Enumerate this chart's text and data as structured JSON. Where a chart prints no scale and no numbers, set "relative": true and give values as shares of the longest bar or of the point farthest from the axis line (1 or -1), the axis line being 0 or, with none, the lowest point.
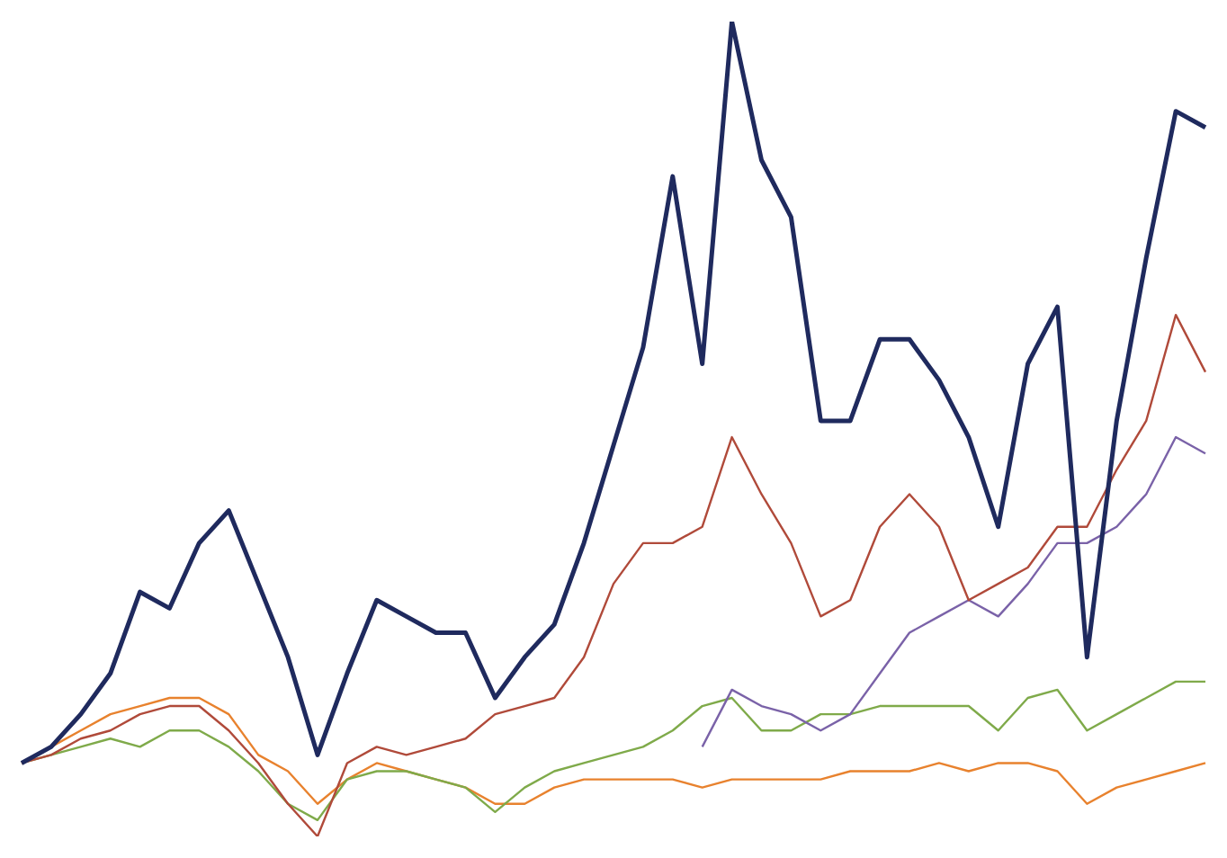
{
  "chart_data": {
    "type": "line",
    "relative": true,
    "categories": [
      null,
      null,
      null,
      null,
      null,
      null,
      null,
      null,
      null,
      null,
      null,
      null,
      null,
      null,
      null,
      null,
      null,
      null,
      null,
      null,
      null,
      null,
      null,
      null,
      null,
      null,
      null,
      null,
      null,
      null,
      null,
      null,
      null,
      null,
      null,
      null,
      null,
      null,
      null,
      null,
      null
    ],
    "series": [
      {
        "color": "#e8822e",
        "values": [
          0.09,
          0.11,
          0.13,
          0.15,
          0.16,
          0.17,
          0.17,
          0.15,
          0.1,
          0.08,
          0.04,
          0.07,
          0.09,
          0.08,
          0.07,
          0.06,
          0.04,
          0.04,
          0.06,
          0.07,
          0.07,
          0.07,
          0.07,
          0.06,
          0.07,
          0.07,
          0.07,
          0.07,
          0.08,
          0.08,
          0.08,
          0.09,
          0.08,
          0.09,
          0.09,
          0.08,
          0.04,
          0.06,
          0.07,
          0.08,
          0.09
        ]
      },
      {
        "color": "#7faa4a",
        "values": [
          0.09,
          0.1,
          0.11,
          0.12,
          0.11,
          0.13,
          0.13,
          0.11,
          0.08,
          0.04,
          0.02,
          0.07,
          0.08,
          0.08,
          0.07,
          0.06,
          0.03,
          0.06,
          0.08,
          0.09,
          0.1,
          0.11,
          0.13,
          0.16,
          0.17,
          0.13,
          0.13,
          0.15,
          0.15,
          0.16,
          0.16,
          0.16,
          0.16,
          0.13,
          0.17,
          0.18,
          0.13,
          0.15,
          0.17,
          0.19,
          0.19
        ]
      },
      {
        "color": "#7a62a8",
        "values": [
          null,
          null,
          null,
          null,
          null,
          null,
          null,
          null,
          null,
          null,
          null,
          null,
          null,
          null,
          null,
          null,
          null,
          null,
          null,
          null,
          null,
          null,
          null,
          0.11,
          0.18,
          0.16,
          0.15,
          0.13,
          0.15,
          0.2,
          0.25,
          0.27,
          0.29,
          0.27,
          0.31,
          0.36,
          0.36,
          0.38,
          0.42,
          0.49,
          0.47
        ]
      },
      {
        "color": "#b04a3a",
        "values": [
          0.09,
          0.1,
          0.12,
          0.13,
          0.15,
          0.16,
          0.16,
          0.13,
          0.09,
          0.04,
          0,
          0.09,
          0.11,
          0.1,
          0.11,
          0.12,
          0.15,
          0.16,
          0.17,
          0.22,
          0.31,
          0.36,
          0.36,
          0.38,
          0.49,
          0.42,
          0.36,
          0.27,
          0.29,
          0.38,
          0.42,
          0.38,
          0.29,
          0.31,
          0.33,
          0.38,
          0.38,
          0.45,
          0.51,
          0.64,
          0.57
        ]
      },
      {
        "color": "#1f2a5e",
        "values": [
          0.09,
          0.11,
          0.15,
          0.2,
          0.3,
          0.28,
          0.36,
          0.4,
          0.31,
          0.22,
          0.1,
          0.2,
          0.29,
          0.27,
          0.25,
          0.25,
          0.17,
          0.22,
          0.26,
          0.36,
          0.48,
          0.6,
          0.81,
          0.58,
          1,
          0.83,
          0.76,
          0.51,
          0.51,
          0.61,
          0.61,
          0.56,
          0.49,
          0.38,
          0.58,
          0.65,
          0.22,
          0.51,
          0.71,
          0.89,
          0.87
        ]
      }
    ]
  }
}
